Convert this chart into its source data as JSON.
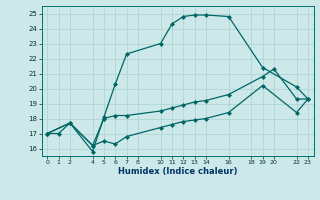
{
  "xlabel": "Humidex (Indice chaleur)",
  "bg_color": "#cce8e8",
  "grid_color": "#b0d4d4",
  "line_color": "#006666",
  "ylim": [
    15.5,
    25.5
  ],
  "xlim": [
    -0.5,
    23.5
  ],
  "yticks": [
    16,
    17,
    18,
    19,
    20,
    21,
    22,
    23,
    24,
    25
  ],
  "xticks": [
    0,
    1,
    2,
    4,
    5,
    6,
    7,
    8,
    10,
    11,
    12,
    13,
    14,
    16,
    18,
    19,
    20,
    22,
    23
  ],
  "xtick_labels": [
    "0",
    "1",
    "2",
    "4",
    "5",
    "6",
    "7",
    "8",
    "10",
    "11",
    "12",
    "13",
    "14",
    "16",
    "18",
    "19",
    "20",
    "22",
    "23"
  ],
  "line1_x": [
    0,
    1,
    2,
    4,
    5,
    6,
    7,
    10,
    11,
    12,
    13,
    14,
    16,
    19,
    22,
    23
  ],
  "line1_y": [
    17,
    17,
    17.7,
    15.8,
    18.1,
    20.3,
    22.3,
    23.0,
    24.3,
    24.8,
    24.9,
    24.9,
    24.8,
    21.4,
    20.1,
    19.3
  ],
  "line2_x": [
    0,
    2,
    4,
    5,
    6,
    7,
    10,
    11,
    12,
    13,
    14,
    16,
    19,
    20,
    22,
    23
  ],
  "line2_y": [
    17,
    17.7,
    16.2,
    18.0,
    18.2,
    18.2,
    18.5,
    18.7,
    18.9,
    19.1,
    19.2,
    19.6,
    20.8,
    21.3,
    19.3,
    19.3
  ],
  "line3_x": [
    0,
    2,
    4,
    5,
    6,
    7,
    10,
    11,
    12,
    13,
    14,
    16,
    19,
    22,
    23
  ],
  "line3_y": [
    17,
    17.7,
    16.2,
    16.5,
    16.3,
    16.8,
    17.4,
    17.6,
    17.8,
    17.9,
    18.0,
    18.4,
    20.2,
    18.4,
    19.3
  ]
}
